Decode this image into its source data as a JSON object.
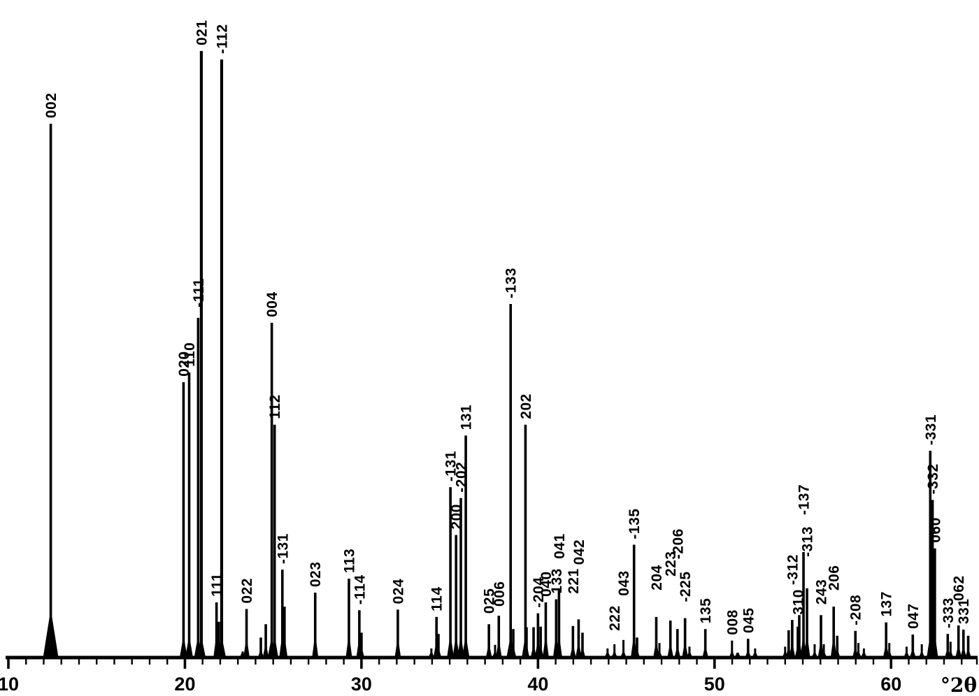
{
  "figure": {
    "description": "Simulated powder X-ray diffraction pattern with hkl Miller index labels",
    "background_color": "#ffffff",
    "foreground_color": "#000000"
  },
  "chart_data": {
    "type": "bar",
    "subtype": "xrd-stick-pattern",
    "title": "",
    "xlabel": "°2θ",
    "ylabel": "",
    "x_axis": {
      "min": 10,
      "max": 64.9,
      "major_ticks": [
        10,
        20,
        30,
        40,
        50,
        60
      ],
      "major_tick_labels": [
        "10",
        "20",
        "30",
        "40",
        "50",
        "60"
      ],
      "minor_tick_interval": 1
    },
    "y_axis": {
      "visible": false,
      "units": "relative intensity (% of strongest peak)",
      "max": 100
    },
    "peaks": [
      {
        "hkl": "002",
        "two_theta": 12.4,
        "intensity": 88.0,
        "broad_base": true
      },
      {
        "hkl": "020",
        "two_theta": 19.92,
        "intensity": 45.4
      },
      {
        "hkl": "110",
        "two_theta": 20.24,
        "intensity": 47.0
      },
      {
        "hkl": "-111",
        "two_theta": 20.75,
        "intensity": 56.0,
        "label_lift": 15
      },
      {
        "hkl": "021",
        "two_theta": 20.93,
        "intensity": 100.0
      },
      {
        "hkl": "111",
        "two_theta": 21.79,
        "intensity": 9.1
      },
      {
        "hkl": "-112",
        "two_theta": 22.08,
        "intensity": 98.6
      },
      {
        "hkl": "022",
        "two_theta": 23.49,
        "intensity": 8.0
      },
      {
        "hkl": "004",
        "two_theta": 24.92,
        "intensity": 55.2
      },
      {
        "hkl": "112",
        "two_theta": 25.08,
        "intensity": 38.4
      },
      {
        "hkl": "-131",
        "two_theta": 25.52,
        "intensity": 14.5
      },
      {
        "hkl": "023",
        "two_theta": 27.38,
        "intensity": 10.7
      },
      {
        "hkl": "113",
        "two_theta": 29.29,
        "intensity": 13.0
      },
      {
        "hkl": "-114",
        "two_theta": 29.88,
        "intensity": 7.8
      },
      {
        "hkl": "024",
        "two_theta": 32.06,
        "intensity": 7.9
      },
      {
        "hkl": "114",
        "two_theta": 34.25,
        "intensity": 6.7
      },
      {
        "hkl": "-131",
        "two_theta": 35.04,
        "intensity": 28.1
      },
      {
        "hkl": "200",
        "two_theta": 35.36,
        "intensity": 20.2
      },
      {
        "hkl": "-202",
        "two_theta": 35.63,
        "intensity": 26.3
      },
      {
        "hkl": "131",
        "two_theta": 35.91,
        "intensity": 36.6
      },
      {
        "hkl": "025",
        "two_theta": 37.22,
        "intensity": 5.5,
        "label_lift": 15
      },
      {
        "hkl": "006",
        "two_theta": 37.78,
        "intensity": 6.9,
        "label_lift": 13
      },
      {
        "hkl": "-133",
        "two_theta": 38.45,
        "intensity": 58.3
      },
      {
        "hkl": "202",
        "two_theta": 39.29,
        "intensity": 38.4
      },
      {
        "hkl": "-204",
        "two_theta": 40.0,
        "intensity": 7.3
      },
      {
        "hkl": "040",
        "two_theta": 40.44,
        "intensity": 9.1
      },
      {
        "hkl": "133",
        "two_theta": 41.03,
        "intensity": 9.6
      },
      {
        "hkl": "041",
        "two_theta": 41.19,
        "intensity": 11.3,
        "label_lift": 43
      },
      {
        "hkl": "221",
        "two_theta": 41.98,
        "intensity": 5.2,
        "label_lift": 46
      },
      {
        "hkl": "042",
        "two_theta": 42.3,
        "intensity": 6.3,
        "label_lift": 78
      },
      {
        "hkl": "222",
        "two_theta": 44.33,
        "intensity": 2.2,
        "label_lift": 19
      },
      {
        "hkl": "043",
        "two_theta": 44.84,
        "intensity": 2.9,
        "label_lift": 63
      },
      {
        "hkl": "-135",
        "two_theta": 45.44,
        "intensity": 18.6
      },
      {
        "hkl": "204",
        "two_theta": 46.7,
        "intensity": 6.7,
        "label_lift": 38
      },
      {
        "hkl": "223",
        "two_theta": 47.5,
        "intensity": 6.1,
        "label_lift": 63
      },
      {
        "hkl": "-206",
        "two_theta": 47.9,
        "intensity": 4.7,
        "label_lift": 100
      },
      {
        "hkl": "-225",
        "two_theta": 48.33,
        "intensity": 6.5,
        "label_lift": 23
      },
      {
        "hkl": "135",
        "two_theta": 49.48,
        "intensity": 4.7
      },
      {
        "hkl": "008",
        "two_theta": 50.99,
        "intensity": 2.8
      },
      {
        "hkl": "045",
        "two_theta": 51.9,
        "intensity": 3.1
      },
      {
        "hkl": "-312",
        "two_theta": 54.4,
        "intensity": 6.2,
        "label_lift": 50
      },
      {
        "hkl": "310",
        "two_theta": 54.72,
        "intensity": 5.1,
        "label_lift": 17
      },
      {
        "hkl": "-137",
        "two_theta": 55.04,
        "intensity": 17.4,
        "label_lift": 53
      },
      {
        "hkl": "-313",
        "two_theta": 55.24,
        "intensity": 11.4,
        "label_lift": 45
      },
      {
        "hkl": "243",
        "two_theta": 56.03,
        "intensity": 7.0,
        "label_lift": 15
      },
      {
        "hkl": "206",
        "two_theta": 56.75,
        "intensity": 8.4,
        "label_lift": 23
      },
      {
        "hkl": "-208",
        "two_theta": 57.98,
        "intensity": 4.4
      },
      {
        "hkl": "137",
        "two_theta": 59.72,
        "intensity": 5.8
      },
      {
        "hkl": "047",
        "two_theta": 61.23,
        "intensity": 3.8
      },
      {
        "hkl": "-331",
        "two_theta": 62.22,
        "intensity": 34.1
      },
      {
        "hkl": "-332",
        "two_theta": 62.35,
        "intensity": 26.0
      },
      {
        "hkl": "060",
        "two_theta": 62.48,
        "intensity": 18.0
      },
      {
        "hkl": "-333",
        "two_theta": 63.21,
        "intensity": 3.9
      },
      {
        "hkl": "062",
        "two_theta": 63.82,
        "intensity": 5.3,
        "label_lift": 35
      },
      {
        "hkl": "331",
        "two_theta": 64.1,
        "intensity": 4.6
      }
    ],
    "minor_peaks": [
      {
        "two_theta": 21.92,
        "intensity": 5.9
      },
      {
        "two_theta": 23.27,
        "intensity": 1.0
      },
      {
        "two_theta": 24.3,
        "intensity": 3.3
      },
      {
        "two_theta": 24.58,
        "intensity": 5.5
      },
      {
        "two_theta": 25.64,
        "intensity": 8.4
      },
      {
        "two_theta": 30.0,
        "intensity": 4.1
      },
      {
        "two_theta": 33.96,
        "intensity": 1.5
      },
      {
        "two_theta": 34.36,
        "intensity": 3.9
      },
      {
        "two_theta": 37.57,
        "intensity": 2.1
      },
      {
        "two_theta": 38.6,
        "intensity": 4.7
      },
      {
        "two_theta": 39.35,
        "intensity": 5.0
      },
      {
        "two_theta": 39.75,
        "intensity": 5.0
      },
      {
        "two_theta": 40.15,
        "intensity": 5.1
      },
      {
        "two_theta": 42.52,
        "intensity": 4.1
      },
      {
        "two_theta": 43.94,
        "intensity": 1.5
      },
      {
        "two_theta": 45.61,
        "intensity": 3.3
      },
      {
        "two_theta": 46.88,
        "intensity": 2.4
      },
      {
        "two_theta": 48.58,
        "intensity": 1.8
      },
      {
        "two_theta": 51.31,
        "intensity": 0.8
      },
      {
        "two_theta": 52.3,
        "intensity": 1.5
      },
      {
        "two_theta": 54.0,
        "intensity": 1.8
      },
      {
        "two_theta": 54.2,
        "intensity": 4.5
      },
      {
        "two_theta": 54.8,
        "intensity": 7.0
      },
      {
        "two_theta": 55.67,
        "intensity": 2.2
      },
      {
        "two_theta": 56.19,
        "intensity": 2.2
      },
      {
        "two_theta": 56.95,
        "intensity": 3.6
      },
      {
        "two_theta": 58.15,
        "intensity": 2.4
      },
      {
        "two_theta": 58.46,
        "intensity": 1.5
      },
      {
        "two_theta": 59.9,
        "intensity": 2.4
      },
      {
        "two_theta": 60.88,
        "intensity": 1.8
      },
      {
        "two_theta": 61.74,
        "intensity": 2.2
      },
      {
        "two_theta": 63.37,
        "intensity": 2.6
      },
      {
        "two_theta": 64.37,
        "intensity": 3.6
      }
    ],
    "layout": {
      "grid": false,
      "legend": false,
      "peak_labels_rotated_degrees": -90
    }
  }
}
